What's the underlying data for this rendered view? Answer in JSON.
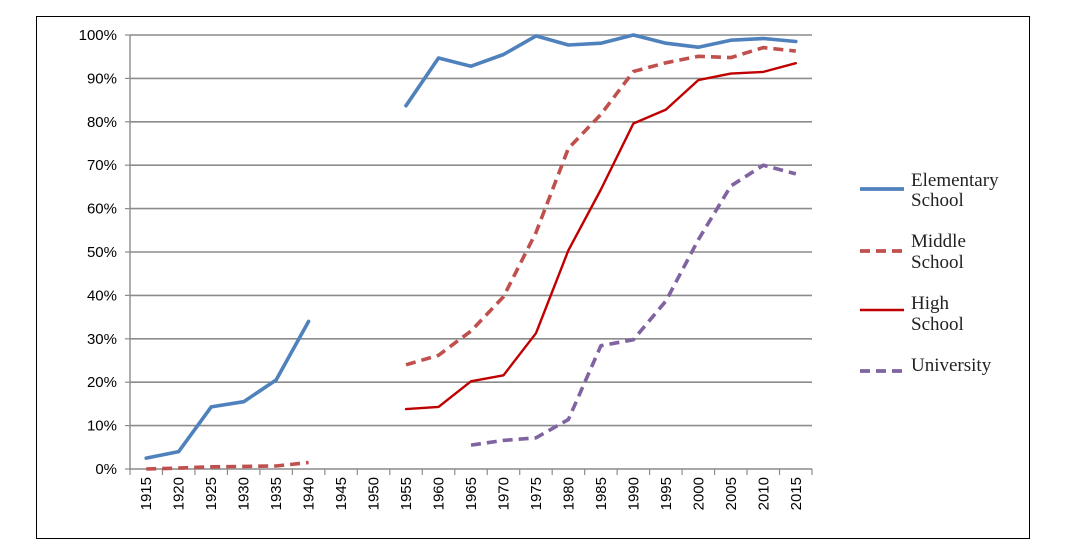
{
  "chart_data": {
    "type": "line",
    "title": "",
    "xlabel": "",
    "ylabel": "",
    "ylim": [
      0,
      100
    ],
    "y_ticks": [
      "0%",
      "10%",
      "20%",
      "30%",
      "40%",
      "50%",
      "60%",
      "70%",
      "80%",
      "90%",
      "100%"
    ],
    "categories": [
      "1915",
      "1920",
      "1925",
      "1930",
      "1935",
      "1940",
      "1945",
      "1950",
      "1955",
      "1960",
      "1965",
      "1970",
      "1975",
      "1980",
      "1985",
      "1990",
      "1995",
      "2000",
      "2005",
      "2010",
      "2015"
    ],
    "grid": true,
    "legend_position": "right",
    "series": [
      {
        "name": "Elementary School",
        "color": "#4F81BD",
        "dash": "solid",
        "values": [
          2.5,
          4,
          14.3,
          15.5,
          20.5,
          34,
          null,
          null,
          83.7,
          94.7,
          92.8,
          95.5,
          99.8,
          97.7,
          98.1,
          100,
          98.1,
          97.2,
          98.8,
          99.2,
          98.5
        ]
      },
      {
        "name": "Middle School",
        "color": "#C0504D",
        "dash": "dashed",
        "values": [
          0,
          0.2,
          0.5,
          0.6,
          0.7,
          1.5,
          null,
          null,
          24,
          26.2,
          31.8,
          39.7,
          54.5,
          73.9,
          81.7,
          91.6,
          93.6,
          95.1,
          94.8,
          97.1,
          96.3
        ]
      },
      {
        "name": "High School",
        "color": "#C00000",
        "dash": "solid",
        "values": [
          null,
          null,
          null,
          null,
          null,
          null,
          null,
          null,
          13.8,
          14.3,
          20.2,
          21.6,
          31.3,
          50.4,
          64.4,
          79.6,
          82.8,
          89.6,
          91.1,
          91.5,
          93.5
        ]
      },
      {
        "name": "University",
        "color": "#8064A2",
        "dash": "dashed",
        "values": [
          null,
          null,
          null,
          null,
          null,
          null,
          null,
          null,
          null,
          null,
          5.5,
          6.6,
          7.2,
          11.4,
          28.4,
          29.8,
          38.7,
          52.8,
          65.2,
          70,
          68
        ]
      }
    ],
    "legend": [
      {
        "line1": "Elementary",
        "line2": "School"
      },
      {
        "line1": "Middle",
        "line2": "School"
      },
      {
        "line1": "High",
        "line2": "School"
      },
      {
        "line1": "University",
        "line2": ""
      }
    ]
  }
}
